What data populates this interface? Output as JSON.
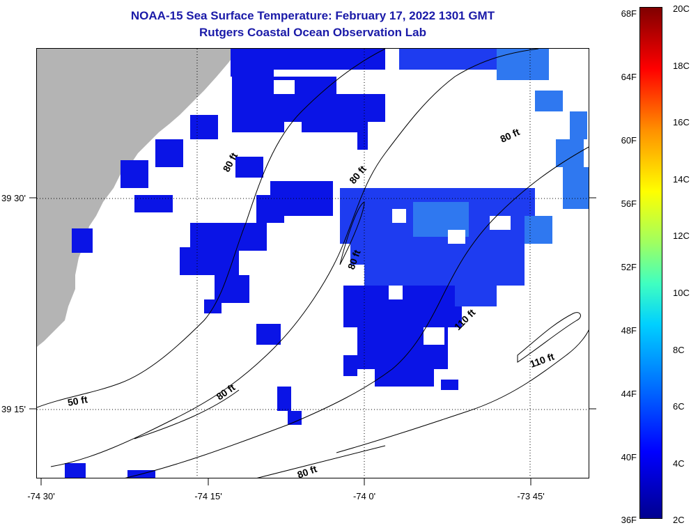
{
  "titles": {
    "line1": "NOAA-15 Sea Surface Temperature:  February 17, 2022 1301 GMT",
    "line2": "Rutgers Coastal Ocean Observation Lab"
  },
  "map": {
    "longitude_labels": [
      "-74 30'",
      "-74 15'",
      "-74 0'",
      "-73 45'"
    ],
    "latitude_labels": [
      "39 30'",
      "39 15'"
    ],
    "depth_labels": [
      "50 ft",
      "80 ft",
      "80 ft",
      "80 ft",
      "80 ft",
      "80 ft",
      "80 ft",
      "110 ft",
      "110 ft"
    ],
    "colors": {
      "land": "#b4b4b4",
      "ocean_cold": "#0a14e6",
      "ocean_mid": "#1e3cf0",
      "ocean_warm": "#2f78f0",
      "contour": "#000000"
    }
  },
  "colorbar": {
    "fahrenheit": [
      "68F",
      "64F",
      "60F",
      "56F",
      "52F",
      "48F",
      "44F",
      "40F",
      "36F"
    ],
    "celsius": [
      "20C",
      "18C",
      "16C",
      "14C",
      "12C",
      "10C",
      "8C",
      "6C",
      "4C",
      "2C"
    ]
  }
}
